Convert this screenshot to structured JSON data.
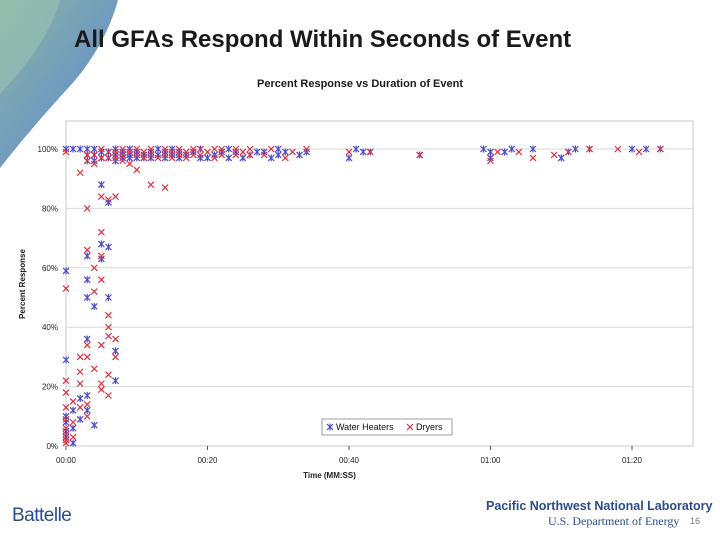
{
  "slide": {
    "title": "All GFAs Respond Within Seconds of Event",
    "page_number": "16"
  },
  "branding": {
    "left_logo": "Battelle",
    "lab_name": "Pacific Northwest National Laboratory",
    "department": "U.S. Department of Energy"
  },
  "colors": {
    "water_heaters": "#4a4ac8",
    "dryers": "#e03040",
    "plot_area_border": "#c8c8c8",
    "gridline": "#d8d8d8",
    "accent_green": "#7fae9a",
    "accent_blue": "#3c6bb0"
  },
  "chart_data": {
    "type": "scatter",
    "title": "Percent Response vs Duration of Event",
    "xlabel": "Time (MM:SS)",
    "ylabel": "Percent Response",
    "xlim_seconds": [
      0,
      90
    ],
    "ylim_percent": [
      0,
      102
    ],
    "x_ticks": [
      {
        "value": 0,
        "label": "00:00"
      },
      {
        "value": 20,
        "label": "00:20"
      },
      {
        "value": 40,
        "label": "00:40"
      },
      {
        "value": 60,
        "label": "01:00"
      },
      {
        "value": 80,
        "label": "01:20"
      }
    ],
    "y_ticks": [
      {
        "value": 0,
        "label": "0%"
      },
      {
        "value": 20,
        "label": "20%"
      },
      {
        "value": 40,
        "label": "40%"
      },
      {
        "value": 60,
        "label": "60%"
      },
      {
        "value": 80,
        "label": "80%"
      },
      {
        "value": 100,
        "label": "100%"
      }
    ],
    "legend_position": "bottom-right",
    "series": [
      {
        "name": "Water Heaters",
        "marker": "asterisk",
        "points": [
          [
            0,
            3
          ],
          [
            0,
            5
          ],
          [
            0,
            8
          ],
          [
            0,
            10
          ],
          [
            0,
            29
          ],
          [
            0,
            59
          ],
          [
            0,
            100
          ],
          [
            1,
            1
          ],
          [
            1,
            6
          ],
          [
            1,
            12
          ],
          [
            1,
            100
          ],
          [
            2,
            9
          ],
          [
            2,
            16
          ],
          [
            2,
            100
          ],
          [
            3,
            12
          ],
          [
            3,
            17
          ],
          [
            3,
            36
          ],
          [
            3,
            50
          ],
          [
            3,
            56
          ],
          [
            3,
            64
          ],
          [
            3,
            96
          ],
          [
            3,
            98
          ],
          [
            3,
            100
          ],
          [
            4,
            7
          ],
          [
            4,
            47
          ],
          [
            4,
            96
          ],
          [
            4,
            98
          ],
          [
            4,
            100
          ],
          [
            5,
            63
          ],
          [
            5,
            68
          ],
          [
            5,
            88
          ],
          [
            5,
            97
          ],
          [
            5,
            99
          ],
          [
            6,
            50
          ],
          [
            6,
            67
          ],
          [
            6,
            82
          ],
          [
            6,
            97
          ],
          [
            6,
            99
          ],
          [
            7,
            22
          ],
          [
            7,
            32
          ],
          [
            7,
            96
          ],
          [
            7,
            98
          ],
          [
            7,
            100
          ],
          [
            8,
            97
          ],
          [
            8,
            98
          ],
          [
            8,
            99
          ],
          [
            9,
            97
          ],
          [
            9,
            98
          ],
          [
            9,
            100
          ],
          [
            10,
            97
          ],
          [
            10,
            99
          ],
          [
            11,
            97
          ],
          [
            11,
            98
          ],
          [
            12,
            97
          ],
          [
            12,
            99
          ],
          [
            13,
            98
          ],
          [
            13,
            100
          ],
          [
            14,
            97
          ],
          [
            14,
            99
          ],
          [
            15,
            98
          ],
          [
            15,
            100
          ],
          [
            16,
            97
          ],
          [
            16,
            99
          ],
          [
            17,
            98
          ],
          [
            18,
            99
          ],
          [
            19,
            97
          ],
          [
            19,
            100
          ],
          [
            20,
            97
          ],
          [
            21,
            98
          ],
          [
            22,
            99
          ],
          [
            23,
            97
          ],
          [
            23,
            100
          ],
          [
            24,
            99
          ],
          [
            25,
            97
          ],
          [
            26,
            98
          ],
          [
            27,
            99
          ],
          [
            28,
            99
          ],
          [
            29,
            97
          ],
          [
            30,
            98
          ],
          [
            30,
            100
          ],
          [
            31,
            99
          ],
          [
            33,
            98
          ],
          [
            34,
            99
          ],
          [
            40,
            97
          ],
          [
            41,
            100
          ],
          [
            42,
            99
          ],
          [
            43,
            99
          ],
          [
            50,
            98
          ],
          [
            59,
            100
          ],
          [
            60,
            97
          ],
          [
            60,
            99
          ],
          [
            62,
            99
          ],
          [
            63,
            100
          ],
          [
            66,
            100
          ],
          [
            70,
            97
          ],
          [
            71,
            99
          ],
          [
            72,
            100
          ],
          [
            74,
            100
          ],
          [
            80,
            100
          ],
          [
            82,
            100
          ],
          [
            84,
            100
          ]
        ]
      },
      {
        "name": "Dryers",
        "marker": "cross",
        "points": [
          [
            0,
            1
          ],
          [
            0,
            2
          ],
          [
            0,
            4
          ],
          [
            0,
            6
          ],
          [
            0,
            9
          ],
          [
            0,
            13
          ],
          [
            0,
            18
          ],
          [
            0,
            22
          ],
          [
            0,
            53
          ],
          [
            0,
            99
          ],
          [
            1,
            3
          ],
          [
            1,
            8
          ],
          [
            1,
            15
          ],
          [
            2,
            13
          ],
          [
            2,
            21
          ],
          [
            2,
            25
          ],
          [
            2,
            30
          ],
          [
            2,
            92
          ],
          [
            3,
            10
          ],
          [
            3,
            14
          ],
          [
            3,
            30
          ],
          [
            3,
            34
          ],
          [
            3,
            66
          ],
          [
            3,
            80
          ],
          [
            3,
            96
          ],
          [
            3,
            98
          ],
          [
            4,
            26
          ],
          [
            4,
            52
          ],
          [
            4,
            60
          ],
          [
            4,
            95
          ],
          [
            4,
            98
          ],
          [
            5,
            19
          ],
          [
            5,
            21
          ],
          [
            5,
            34
          ],
          [
            5,
            56
          ],
          [
            5,
            64
          ],
          [
            5,
            72
          ],
          [
            5,
            84
          ],
          [
            5,
            97
          ],
          [
            5,
            100
          ],
          [
            6,
            17
          ],
          [
            6,
            24
          ],
          [
            6,
            37
          ],
          [
            6,
            40
          ],
          [
            6,
            44
          ],
          [
            6,
            83
          ],
          [
            6,
            97
          ],
          [
            6,
            99
          ],
          [
            7,
            30
          ],
          [
            7,
            36
          ],
          [
            7,
            84
          ],
          [
            7,
            97
          ],
          [
            7,
            99
          ],
          [
            8,
            96
          ],
          [
            8,
            98
          ],
          [
            8,
            100
          ],
          [
            9,
            95
          ],
          [
            9,
            99
          ],
          [
            10,
            93
          ],
          [
            10,
            98
          ],
          [
            10,
            100
          ],
          [
            11,
            97
          ],
          [
            11,
            99
          ],
          [
            12,
            88
          ],
          [
            12,
            98
          ],
          [
            12,
            100
          ],
          [
            13,
            97
          ],
          [
            14,
            87
          ],
          [
            14,
            98
          ],
          [
            14,
            100
          ],
          [
            15,
            97
          ],
          [
            15,
            99
          ],
          [
            16,
            98
          ],
          [
            16,
            100
          ],
          [
            17,
            97
          ],
          [
            17,
            99
          ],
          [
            18,
            98
          ],
          [
            18,
            100
          ],
          [
            19,
            98
          ],
          [
            19,
            100
          ],
          [
            20,
            99
          ],
          [
            21,
            97
          ],
          [
            21,
            100
          ],
          [
            22,
            98
          ],
          [
            22,
            100
          ],
          [
            24,
            98
          ],
          [
            24,
            100
          ],
          [
            25,
            99
          ],
          [
            26,
            98
          ],
          [
            26,
            100
          ],
          [
            28,
            98
          ],
          [
            29,
            100
          ],
          [
            31,
            97
          ],
          [
            32,
            99
          ],
          [
            34,
            100
          ],
          [
            40,
            99
          ],
          [
            43,
            99
          ],
          [
            50,
            98
          ],
          [
            60,
            96
          ],
          [
            61,
            99
          ],
          [
            64,
            99
          ],
          [
            66,
            97
          ],
          [
            69,
            98
          ],
          [
            71,
            99
          ],
          [
            74,
            100
          ],
          [
            78,
            100
          ],
          [
            81,
            99
          ],
          [
            84,
            100
          ]
        ]
      }
    ]
  }
}
